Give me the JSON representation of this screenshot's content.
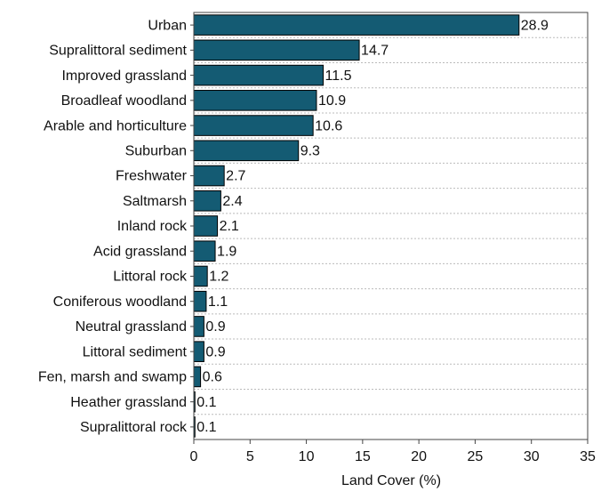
{
  "chart_data": {
    "type": "barh",
    "x_label": "Land Cover (%)",
    "categories": [
      "Urban",
      "Supralittoral sediment",
      "Improved grassland",
      "Broadleaf woodland",
      "Arable and horticulture",
      "Suburban",
      "Freshwater",
      "Saltmarsh",
      "Inland rock",
      "Acid grassland",
      "Littoral rock",
      "Coniferous woodland",
      "Neutral grassland",
      "Littoral sediment",
      "Fen, marsh and swamp",
      "Heather grassland",
      "Supralittoral rock"
    ],
    "values": [
      28.9,
      14.7,
      11.5,
      10.9,
      10.6,
      9.3,
      2.7,
      2.4,
      2.1,
      1.9,
      1.2,
      1.1,
      0.9,
      0.9,
      0.6,
      0.1,
      0.1
    ],
    "color": "#145b73",
    "xlim": [
      0,
      35
    ],
    "xticks": [
      0,
      5,
      10,
      15,
      20,
      25,
      30,
      35
    ],
    "grid": true
  }
}
